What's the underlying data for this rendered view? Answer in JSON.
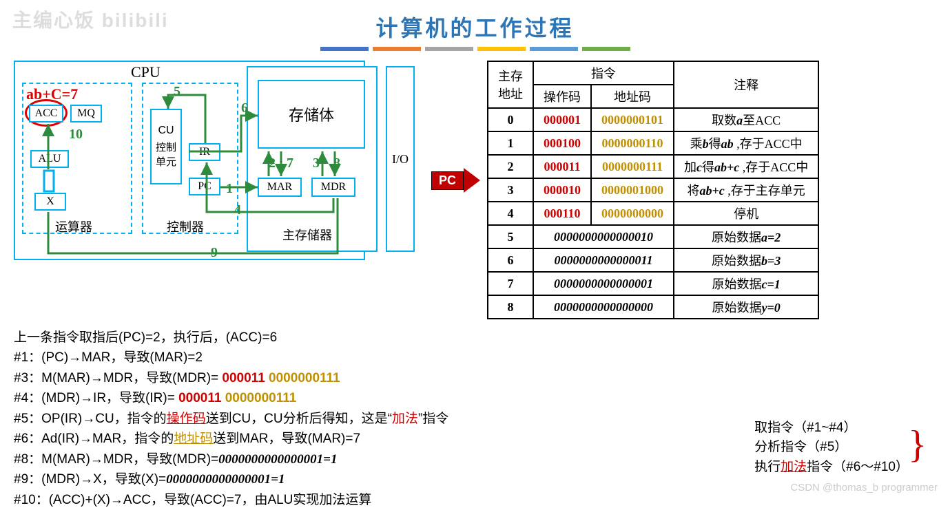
{
  "title": "计算机的工作过程",
  "watermark_tl": "主编心饭  bilibili",
  "watermark_br": "CSDN @thomas_b programmer",
  "rule_colors": [
    "#4472c4",
    "#ed7d31",
    "#a5a5a5",
    "#ffc000",
    "#5b9bd5",
    "#70ad47"
  ],
  "diagram": {
    "cpu_label": "CPU",
    "hand_note": "ab+C=7",
    "units": {
      "acc": "ACC",
      "mq": "MQ",
      "alu": "ALU",
      "x": "X",
      "cu": "CU",
      "cu_chn": "控制\n单元",
      "ir": "IR",
      "pc": "PC",
      "storage": "存储体",
      "mar": "MAR",
      "mdr": "MDR",
      "io": "I/O"
    },
    "sublabels": {
      "yun": "运算器",
      "ctrl": "控制器",
      "mem": "主存储器"
    },
    "green_nums": {
      "n1": "1",
      "n2": "2",
      "n3": "3",
      "n4": "4",
      "n5": "5",
      "n6": "6",
      "n7": "7",
      "n8": "8",
      "n9": "9",
      "n10": "10"
    }
  },
  "pc_badge": "PC",
  "table": {
    "h_addr": "主存\n地址",
    "h_instr": "指令",
    "h_annot": "注释",
    "h_op": "操作码",
    "h_ac": "地址码",
    "rows_instr": [
      {
        "addr": "0",
        "op": "000001",
        "ac": "0000000101",
        "annot": "取数<b>a</b>至ACC"
      },
      {
        "addr": "1",
        "op": "000100",
        "ac": "0000000110",
        "annot": "乘<b>b</b>得<b>ab</b> ,存于ACC中"
      },
      {
        "addr": "2",
        "op": "000011",
        "ac": "0000000111",
        "annot": "加<b>c</b>得<b>ab+c</b> ,存于ACC中"
      },
      {
        "addr": "3",
        "op": "000010",
        "ac": "0000001000",
        "annot": "将<b>ab+c</b> ,存于主存单元"
      },
      {
        "addr": "4",
        "op": "000110",
        "ac": "0000000000",
        "annot": "停机"
      }
    ],
    "rows_data": [
      {
        "addr": "5",
        "val": "0000000000000010",
        "annot": "原始数据<b>a=2</b>"
      },
      {
        "addr": "6",
        "val": "0000000000000011",
        "annot": "原始数据<b>b=3</b>"
      },
      {
        "addr": "7",
        "val": "0000000000000001",
        "annot": "原始数据<b>c=1</b>"
      },
      {
        "addr": "8",
        "val": "0000000000000000",
        "annot": "原始数据<b>y=0</b>"
      }
    ]
  },
  "steps": {
    "pre": "上一条指令取指后(PC)=2，执行后，(ACC)=6",
    "s1": "#1：(PC)→MAR，导致(MAR)=2",
    "s3_a": "#3：M(MAR)→MDR，导致(MDR)= ",
    "s3_op": "000011",
    "s3_ac": "0000000111",
    "s4_a": "#4：(MDR)→IR，导致(IR)= ",
    "s4_op": "000011",
    "s4_ac": "0000000111",
    "s5_a": "#5：OP(IR)→CU，指令的",
    "s5_b": "操作码",
    "s5_c": "送到CU，CU分析后得知，这是“",
    "s5_d": "加法",
    "s5_e": "”指令",
    "s6_a": "#6：Ad(IR)→MAR，指令的",
    "s6_b": "地址码",
    "s6_c": "送到MAR，导致(MAR)=7",
    "s8_a": "#8：M(MAR)→MDR，导致(MDR)=",
    "s8_val": "0000000000000001=1",
    "s9_a": "#9：(MDR)→X，导致(X)=",
    "s9_val": "0000000000000001=1",
    "s10": "#10：(ACC)+(X)→ACC，导致(ACC)=7，由ALU实现加法运算"
  },
  "summary": {
    "l1": "取指令（#1~#4）",
    "l2": "分析指令（#5）",
    "l3_a": "执行",
    "l3_b": "加法",
    "l3_c": "指令（#6～#10）"
  }
}
